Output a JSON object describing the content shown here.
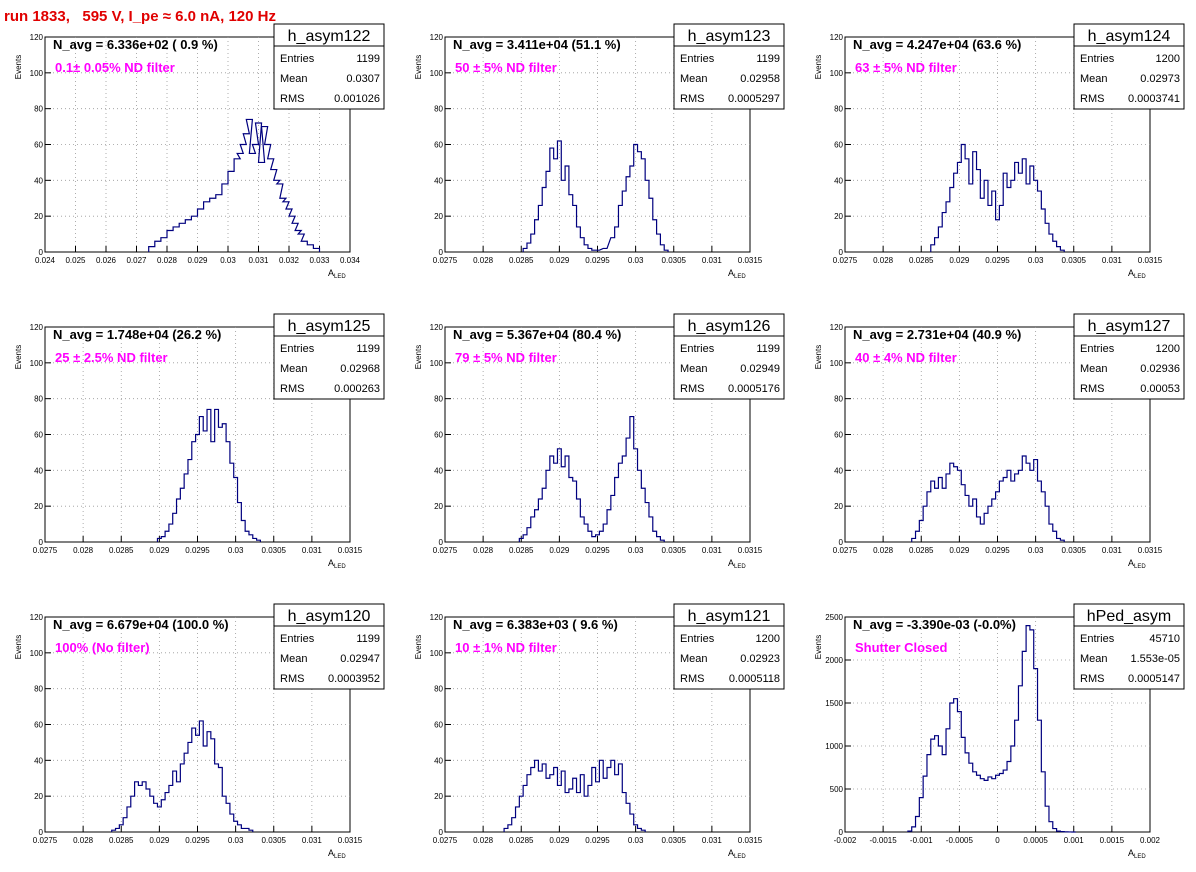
{
  "title": "run 1833,   595 V, I_pe ≈ 6.0 nA, 120 Hz",
  "axis_labels": {
    "y": "Events",
    "x_main": "A",
    "x_sub": "LED"
  },
  "stats_labels": {
    "entries": "Entries",
    "mean": "Mean",
    "rms": "RMS"
  },
  "colors": {
    "histogram": "#00007f",
    "title": "#e00000",
    "annotation": "#ff00ff",
    "grid": "#999999"
  },
  "chart_data": [
    {
      "type": "bar",
      "name": "h_asym122",
      "navg": "N_avg = 6.336e+02 ( 0.9 %)",
      "filter": "0.1± 0.05% ND filter",
      "entries": "1199",
      "mean": "0.0307",
      "rms": "0.001026",
      "xlim": [
        0.024,
        0.034
      ],
      "ylim": [
        0,
        120
      ],
      "xticks": [
        "0.024",
        "0.025",
        "0.026",
        "0.027",
        "0.028",
        "0.029",
        "0.03",
        "0.031",
        "0.032",
        "0.033",
        "0.034"
      ],
      "yticks": [
        "0",
        "20",
        "40",
        "60",
        "80",
        "100",
        "120"
      ],
      "x": [
        0.0275,
        0.0277,
        0.0279,
        0.0281,
        0.0283,
        0.0285,
        0.0287,
        0.0289,
        0.0291,
        0.0293,
        0.0295,
        0.0297,
        0.0299,
        0.0301,
        0.0303,
        0.0304,
        0.0305,
        0.0306,
        0.0307,
        0.0308,
        0.0309,
        0.031,
        0.0311,
        0.0312,
        0.0313,
        0.0314,
        0.0315,
        0.0316,
        0.0317,
        0.0318,
        0.0319,
        0.032,
        0.0321,
        0.0322,
        0.0323,
        0.0324,
        0.0325,
        0.0327,
        0.0329
      ],
      "y": [
        3,
        6,
        8,
        12,
        14,
        16,
        18,
        20,
        24,
        28,
        30,
        32,
        38,
        45,
        52,
        55,
        60,
        66,
        74,
        55,
        60,
        72,
        50,
        70,
        60,
        52,
        46,
        40,
        38,
        30,
        28,
        24,
        20,
        16,
        12,
        10,
        6,
        4,
        2
      ]
    },
    {
      "type": "bar",
      "name": "h_asym123",
      "navg": "N_avg = 3.411e+04 (51.1 %)",
      "filter": "50 ± 5% ND filter",
      "entries": "1199",
      "mean": "0.02958",
      "rms": "0.0005297",
      "xlim": [
        0.0275,
        0.0315
      ],
      "ylim": [
        0,
        120
      ],
      "xticks": [
        "0.0275",
        "0.028",
        "0.0285",
        "0.029",
        "0.0295",
        "0.03",
        "0.0305",
        "0.031",
        "0.0315"
      ],
      "yticks": [
        "0",
        "20",
        "40",
        "60",
        "80",
        "100",
        "120"
      ],
      "x": [
        0.02855,
        0.0286,
        0.02865,
        0.0287,
        0.02875,
        0.0288,
        0.02885,
        0.0289,
        0.02895,
        0.029,
        0.02905,
        0.0291,
        0.02915,
        0.0292,
        0.02925,
        0.0293,
        0.02935,
        0.0294,
        0.02945,
        0.0295,
        0.0296,
        0.0297,
        0.02975,
        0.0298,
        0.02985,
        0.0299,
        0.02995,
        0.03,
        0.03005,
        0.0301,
        0.03015,
        0.0302,
        0.03025,
        0.0303,
        0.03035,
        0.0304
      ],
      "y": [
        2,
        5,
        10,
        18,
        26,
        36,
        45,
        58,
        52,
        62,
        40,
        48,
        32,
        26,
        14,
        8,
        4,
        2,
        1,
        1,
        2,
        8,
        14,
        26,
        34,
        42,
        48,
        60,
        56,
        52,
        40,
        30,
        18,
        10,
        4,
        1
      ]
    },
    {
      "type": "bar",
      "name": "h_asym124",
      "navg": "N_avg = 4.247e+04 (63.6 %)",
      "filter": "63 ± 5% ND filter",
      "entries": "1200",
      "mean": "0.02973",
      "rms": "0.0003741",
      "xlim": [
        0.0275,
        0.0315
      ],
      "ylim": [
        0,
        120
      ],
      "xticks": [
        "0.0275",
        "0.028",
        "0.0285",
        "0.029",
        "0.0295",
        "0.03",
        "0.0305",
        "0.031",
        "0.0315"
      ],
      "yticks": [
        "0",
        "20",
        "40",
        "60",
        "80",
        "100",
        "120"
      ],
      "x": [
        0.02865,
        0.0287,
        0.02875,
        0.0288,
        0.02885,
        0.0289,
        0.02895,
        0.029,
        0.02905,
        0.0291,
        0.02915,
        0.0292,
        0.02925,
        0.0293,
        0.02935,
        0.0294,
        0.02945,
        0.0295,
        0.02955,
        0.0296,
        0.02965,
        0.0297,
        0.02975,
        0.0298,
        0.02985,
        0.0299,
        0.02995,
        0.03,
        0.03005,
        0.0301,
        0.03015,
        0.0302,
        0.03025,
        0.0303,
        0.03035
      ],
      "y": [
        4,
        8,
        14,
        22,
        28,
        36,
        44,
        50,
        60,
        52,
        38,
        56,
        46,
        30,
        40,
        26,
        34,
        18,
        26,
        44,
        36,
        40,
        50,
        44,
        52,
        38,
        48,
        40,
        34,
        24,
        16,
        10,
        6,
        3,
        1
      ]
    },
    {
      "type": "bar",
      "name": "h_asym125",
      "navg": "N_avg = 1.748e+04 (26.2 %)",
      "filter": "25 ± 2.5% ND filter",
      "entries": "1199",
      "mean": "0.02968",
      "rms": "0.000263",
      "xlim": [
        0.0275,
        0.0315
      ],
      "ylim": [
        0,
        120
      ],
      "xticks": [
        "0.0275",
        "0.028",
        "0.0285",
        "0.029",
        "0.0295",
        "0.03",
        "0.0305",
        "0.031",
        "0.0315"
      ],
      "yticks": [
        "0",
        "20",
        "40",
        "60",
        "80",
        "100",
        "120"
      ],
      "x": [
        0.029,
        0.02905,
        0.0291,
        0.02915,
        0.0292,
        0.02925,
        0.0293,
        0.02935,
        0.0294,
        0.02945,
        0.0295,
        0.02955,
        0.0296,
        0.02965,
        0.0297,
        0.02975,
        0.0298,
        0.02985,
        0.0299,
        0.02995,
        0.03,
        0.03005,
        0.0301,
        0.03015,
        0.0302,
        0.03025,
        0.0303
      ],
      "y": [
        2,
        3,
        6,
        10,
        16,
        24,
        30,
        38,
        46,
        56,
        60,
        70,
        62,
        74,
        56,
        74,
        64,
        66,
        56,
        44,
        36,
        22,
        12,
        6,
        4,
        2,
        1
      ]
    },
    {
      "type": "bar",
      "name": "h_asym126",
      "navg": "N_avg = 5.367e+04 (80.4 %)",
      "filter": "79 ± 5% ND filter",
      "entries": "1199",
      "mean": "0.02949",
      "rms": "0.0005176",
      "xlim": [
        0.0275,
        0.0315
      ],
      "ylim": [
        0,
        120
      ],
      "xticks": [
        "0.0275",
        "0.028",
        "0.0285",
        "0.029",
        "0.0295",
        "0.03",
        "0.0305",
        "0.031",
        "0.0315"
      ],
      "yticks": [
        "0",
        "20",
        "40",
        "60",
        "80",
        "100",
        "120"
      ],
      "x": [
        0.0285,
        0.02855,
        0.0286,
        0.02865,
        0.0287,
        0.02875,
        0.0288,
        0.02885,
        0.0289,
        0.02895,
        0.029,
        0.02905,
        0.0291,
        0.02915,
        0.0292,
        0.02925,
        0.0293,
        0.02935,
        0.0294,
        0.02945,
        0.0295,
        0.02955,
        0.0296,
        0.02965,
        0.0297,
        0.02975,
        0.0298,
        0.02985,
        0.0299,
        0.02995,
        0.03,
        0.03005,
        0.0301,
        0.03015,
        0.0302,
        0.03025,
        0.0303,
        0.03035
      ],
      "y": [
        2,
        4,
        8,
        14,
        18,
        24,
        30,
        40,
        48,
        44,
        52,
        42,
        48,
        36,
        34,
        24,
        14,
        10,
        6,
        3,
        4,
        6,
        10,
        18,
        26,
        36,
        44,
        48,
        58,
        70,
        52,
        40,
        30,
        22,
        14,
        6,
        3,
        1
      ]
    },
    {
      "type": "bar",
      "name": "h_asym127",
      "navg": "N_avg = 2.731e+04 (40.9 %)",
      "filter": "40 ± 4% ND filter",
      "entries": "1200",
      "mean": "0.02936",
      "rms": "0.00053",
      "xlim": [
        0.0275,
        0.0315
      ],
      "ylim": [
        0,
        120
      ],
      "xticks": [
        "0.0275",
        "0.028",
        "0.0285",
        "0.029",
        "0.0295",
        "0.03",
        "0.0305",
        "0.031",
        "0.0315"
      ],
      "yticks": [
        "0",
        "20",
        "40",
        "60",
        "80",
        "100",
        "120"
      ],
      "x": [
        0.0284,
        0.02845,
        0.0285,
        0.02855,
        0.0286,
        0.02865,
        0.0287,
        0.02875,
        0.0288,
        0.02885,
        0.0289,
        0.02895,
        0.029,
        0.02905,
        0.0291,
        0.02915,
        0.0292,
        0.02925,
        0.0293,
        0.02935,
        0.0294,
        0.02945,
        0.0295,
        0.02955,
        0.0296,
        0.02965,
        0.0297,
        0.02975,
        0.0298,
        0.02985,
        0.0299,
        0.02995,
        0.03,
        0.03005,
        0.0301,
        0.03015,
        0.0302,
        0.03025,
        0.0303,
        0.03035
      ],
      "y": [
        2,
        6,
        12,
        20,
        28,
        34,
        30,
        36,
        30,
        38,
        44,
        42,
        40,
        32,
        26,
        20,
        24,
        14,
        10,
        16,
        20,
        24,
        28,
        34,
        36,
        40,
        34,
        38,
        40,
        48,
        44,
        40,
        46,
        34,
        28,
        20,
        10,
        6,
        2,
        1
      ]
    },
    {
      "type": "bar",
      "name": "h_asym120",
      "navg": "N_avg = 6.679e+04 (100.0 %)",
      "filter": "100% (No filter)",
      "entries": "1199",
      "mean": "0.02947",
      "rms": "0.0003952",
      "xlim": [
        0.0275,
        0.0315
      ],
      "ylim": [
        0,
        120
      ],
      "xticks": [
        "0.0275",
        "0.028",
        "0.0285",
        "0.029",
        "0.0295",
        "0.03",
        "0.0305",
        "0.031",
        "0.0315"
      ],
      "yticks": [
        "0",
        "20",
        "40",
        "60",
        "80",
        "100",
        "120"
      ],
      "x": [
        0.0284,
        0.02845,
        0.0285,
        0.02855,
        0.0286,
        0.02865,
        0.0287,
        0.02875,
        0.0288,
        0.02885,
        0.0289,
        0.02895,
        0.029,
        0.02905,
        0.0291,
        0.02915,
        0.0292,
        0.02925,
        0.0293,
        0.02935,
        0.0294,
        0.02945,
        0.0295,
        0.02955,
        0.0296,
        0.02965,
        0.0297,
        0.02975,
        0.0298,
        0.02985,
        0.0299,
        0.02995,
        0.03,
        0.03005,
        0.0301,
        0.03015,
        0.0302
      ],
      "y": [
        1,
        2,
        4,
        8,
        14,
        20,
        28,
        26,
        28,
        24,
        20,
        16,
        14,
        18,
        22,
        26,
        34,
        28,
        38,
        44,
        50,
        58,
        54,
        62,
        48,
        56,
        52,
        38,
        36,
        20,
        16,
        10,
        6,
        4,
        2,
        2,
        1
      ]
    },
    {
      "type": "bar",
      "name": "h_asym121",
      "navg": "N_avg = 6.383e+03 ( 9.6 %)",
      "filter": "10 ± 1% ND filter",
      "entries": "1200",
      "mean": "0.02923",
      "rms": "0.0005118",
      "xlim": [
        0.0275,
        0.0315
      ],
      "ylim": [
        0,
        120
      ],
      "xticks": [
        "0.0275",
        "0.028",
        "0.0285",
        "0.029",
        "0.0295",
        "0.03",
        "0.0305",
        "0.031",
        "0.0315"
      ],
      "yticks": [
        "0",
        "20",
        "40",
        "60",
        "80",
        "100",
        "120"
      ],
      "x": [
        0.0283,
        0.02835,
        0.0284,
        0.02845,
        0.0285,
        0.02855,
        0.0286,
        0.02865,
        0.0287,
        0.02875,
        0.0288,
        0.02885,
        0.0289,
        0.02895,
        0.029,
        0.02905,
        0.0291,
        0.02915,
        0.0292,
        0.02925,
        0.0293,
        0.02935,
        0.0294,
        0.02945,
        0.0295,
        0.02955,
        0.0296,
        0.02965,
        0.0297,
        0.02975,
        0.0298,
        0.02985,
        0.0299,
        0.02995,
        0.03,
        0.03005,
        0.0301
      ],
      "y": [
        2,
        4,
        8,
        14,
        20,
        26,
        32,
        36,
        40,
        34,
        38,
        30,
        32,
        36,
        26,
        34,
        22,
        24,
        30,
        22,
        32,
        20,
        26,
        36,
        28,
        40,
        30,
        36,
        40,
        32,
        38,
        22,
        16,
        10,
        4,
        2,
        1
      ]
    },
    {
      "type": "bar",
      "name": "hPed_asym",
      "navg": "N_avg = -3.390e-03 (-0.0%)",
      "filter": "Shutter Closed",
      "entries": "45710",
      "mean": "1.553e-05",
      "rms": "0.0005147",
      "xlim": [
        -0.002,
        0.002
      ],
      "ylim": [
        0,
        2500
      ],
      "xticks": [
        "-0.002",
        "-0.0015",
        "-0.001",
        "-0.0005",
        "0",
        "0.0005",
        "0.001",
        "0.0015",
        "0.002"
      ],
      "yticks": [
        "0",
        "500",
        "1000",
        "1500",
        "2000",
        "2500"
      ],
      "x": [
        -0.00115,
        -0.0011,
        -0.00105,
        -0.001,
        -0.00095,
        -0.0009,
        -0.00085,
        -0.0008,
        -0.00075,
        -0.0007,
        -0.00065,
        -0.0006,
        -0.00055,
        -0.0005,
        -0.00045,
        -0.0004,
        -0.00035,
        -0.0003,
        -0.00025,
        -0.0002,
        -0.00015,
        -0.0001,
        -5e-05,
        0,
        5e-05,
        0.0001,
        0.00015,
        0.0002,
        0.00025,
        0.0003,
        0.00035,
        0.0004,
        0.00045,
        0.0005,
        0.00055,
        0.0006,
        0.00065,
        0.0007,
        0.00075,
        0.0008,
        0.00085,
        0.0009,
        0.00095,
        0.001
      ],
      "y": [
        10,
        60,
        180,
        400,
        650,
        900,
        1080,
        1120,
        1000,
        900,
        1200,
        1500,
        1550,
        1400,
        1100,
        920,
        800,
        700,
        660,
        620,
        600,
        640,
        620,
        660,
        680,
        720,
        820,
        1000,
        1300,
        1700,
        2100,
        2400,
        2350,
        1900,
        1300,
        700,
        300,
        120,
        40,
        10,
        5,
        2,
        1,
        0
      ]
    }
  ]
}
